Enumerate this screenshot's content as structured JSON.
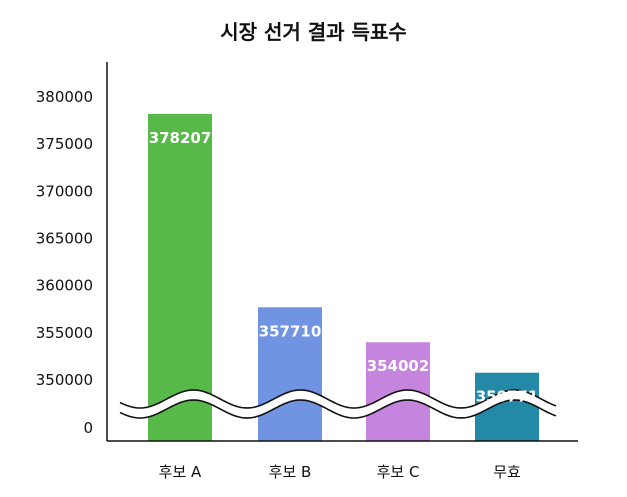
{
  "chart_data": {
    "type": "bar",
    "title": "시장 선거 결과 득표수",
    "xlabel": "",
    "ylabel": "",
    "categories": [
      "후보 A",
      "후보 B",
      "후보 C",
      "무효"
    ],
    "values": [
      378207,
      357710,
      354002,
      350771
    ],
    "colors": [
      "#57b947",
      "#7094e1",
      "#c584dd",
      "#2389a7"
    ],
    "y_ticks": [
      "0",
      "350000",
      "355000",
      "360000",
      "365000",
      "370000",
      "375000",
      "380000"
    ],
    "axis_break": true,
    "ylim_upper": [
      345000,
      383000
    ],
    "grid": false,
    "legend": "none"
  }
}
